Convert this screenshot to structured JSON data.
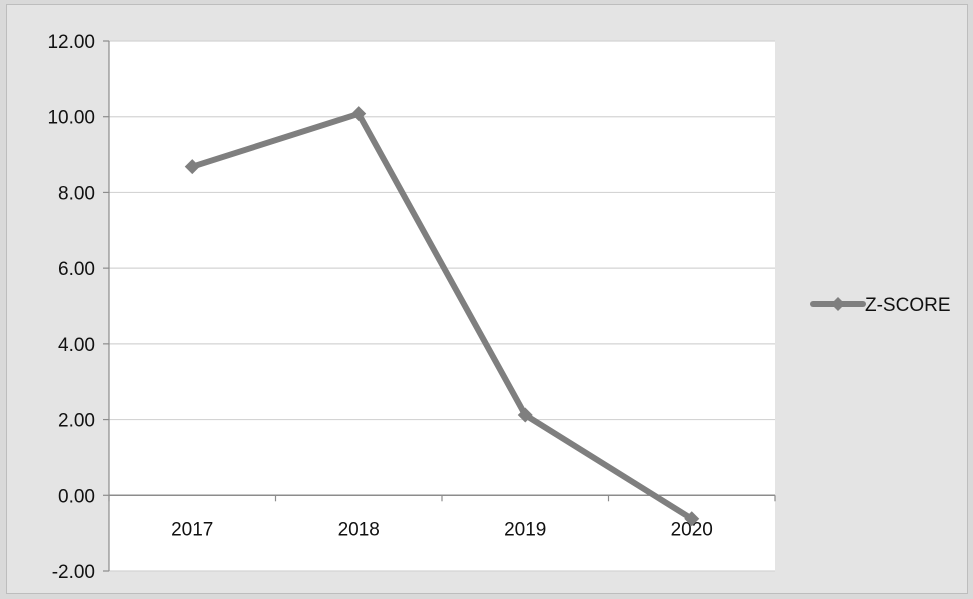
{
  "chart_data": {
    "type": "line",
    "categories": [
      "2017",
      "2018",
      "2019",
      "2020"
    ],
    "series": [
      {
        "name": "Z-SCORE",
        "values": [
          8.68,
          10.08,
          2.12,
          -0.62
        ]
      }
    ],
    "ylim": [
      -2.0,
      12.0
    ],
    "yticks": [
      -2.0,
      0.0,
      2.0,
      4.0,
      6.0,
      8.0,
      10.0,
      12.0
    ],
    "ytick_labels": [
      "-2.00",
      "0.00",
      "2.00",
      "4.00",
      "6.00",
      "8.00",
      "10.00",
      "12.00"
    ],
    "grid": true,
    "legend_position": "right",
    "colors": {
      "series": "#7f7f7f",
      "grid": "#d4d4d4",
      "plot_bg": "#ffffff",
      "chart_bg": "#e4e4e4"
    }
  }
}
